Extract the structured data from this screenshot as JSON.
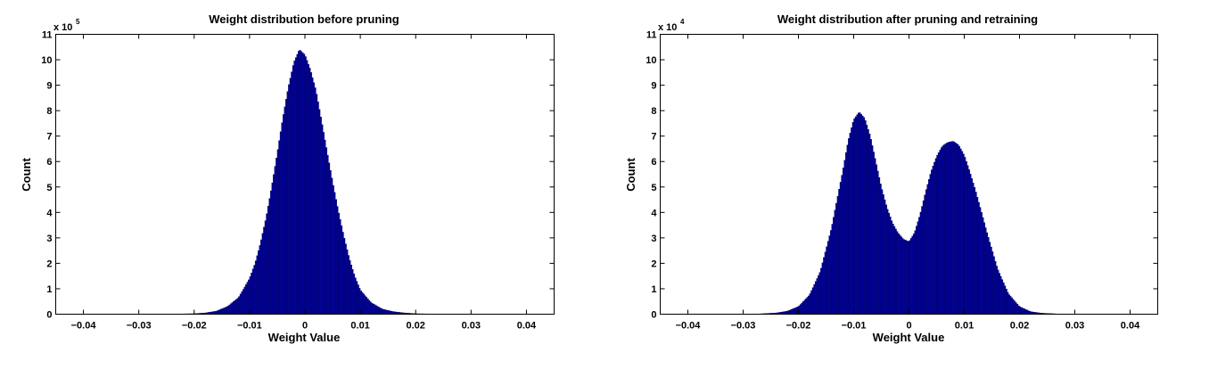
{
  "chart_data": [
    {
      "type": "bar",
      "title": "Weight distribution before pruning",
      "xlabel": "Weight Value",
      "ylabel": "Count",
      "exponent_base": "x 10",
      "exponent_power": "5",
      "xlim": [
        -0.045,
        0.045
      ],
      "ylim": [
        0,
        11
      ],
      "xticks": [
        -0.04,
        -0.03,
        -0.02,
        -0.01,
        0,
        0.01,
        0.02,
        0.03,
        0.04
      ],
      "xtick_labels": [
        "−0.04",
        "−0.03",
        "−0.02",
        "−0.01",
        "0",
        "0.01",
        "0.02",
        "0.03",
        "0.04"
      ],
      "yticks": [
        0,
        1,
        2,
        3,
        4,
        5,
        6,
        7,
        8,
        9,
        10,
        11
      ],
      "ytick_labels": [
        "0",
        "1",
        "2",
        "3",
        "4",
        "5",
        "6",
        "7",
        "8",
        "9",
        "10",
        "11"
      ],
      "grid": false,
      "bar_color": "#000096",
      "bins": {
        "start": -0.025,
        "end": 0.025,
        "width": 0.00025
      },
      "curve_points": {
        "x": [
          -0.025,
          -0.02,
          -0.018,
          -0.016,
          -0.014,
          -0.012,
          -0.01,
          -0.009,
          -0.008,
          -0.007,
          -0.006,
          -0.005,
          -0.004,
          -0.003,
          -0.002,
          -0.001,
          0.0,
          0.001,
          0.002,
          0.003,
          0.004,
          0.005,
          0.006,
          0.007,
          0.008,
          0.009,
          0.01,
          0.012,
          0.014,
          0.016,
          0.018,
          0.02,
          0.025
        ],
        "y": [
          0,
          0.02,
          0.05,
          0.12,
          0.3,
          0.65,
          1.4,
          2.0,
          2.8,
          3.8,
          5.0,
          6.3,
          7.7,
          8.9,
          9.9,
          10.4,
          10.2,
          9.6,
          8.8,
          7.6,
          6.4,
          5.2,
          4.1,
          3.1,
          2.2,
          1.5,
          0.95,
          0.45,
          0.2,
          0.1,
          0.05,
          0.02,
          0
        ]
      }
    },
    {
      "type": "bar",
      "title": "Weight distribution after pruning and retraining",
      "xlabel": "Weight Value",
      "ylabel": "Count",
      "exponent_base": "x 10",
      "exponent_power": "4",
      "xlim": [
        -0.045,
        0.045
      ],
      "ylim": [
        0,
        11
      ],
      "xticks": [
        -0.04,
        -0.03,
        -0.02,
        -0.01,
        0,
        0.01,
        0.02,
        0.03,
        0.04
      ],
      "xtick_labels": [
        "−0.04",
        "−0.03",
        "−0.02",
        "−0.01",
        "0",
        "0.01",
        "0.02",
        "0.03",
        "0.04"
      ],
      "yticks": [
        0,
        1,
        2,
        3,
        4,
        5,
        6,
        7,
        8,
        9,
        10,
        11
      ],
      "ytick_labels": [
        "0",
        "1",
        "2",
        "3",
        "4",
        "5",
        "6",
        "7",
        "8",
        "9",
        "10",
        "11"
      ],
      "grid": false,
      "bar_color": "#000096",
      "bins": {
        "start": -0.028,
        "end": 0.028,
        "width": 0.00025
      },
      "curve_points": {
        "x": [
          -0.028,
          -0.024,
          -0.022,
          -0.02,
          -0.018,
          -0.016,
          -0.014,
          -0.012,
          -0.011,
          -0.01,
          -0.009,
          -0.008,
          -0.007,
          -0.006,
          -0.005,
          -0.004,
          -0.003,
          -0.002,
          -0.001,
          0.0,
          0.001,
          0.002,
          0.003,
          0.004,
          0.005,
          0.006,
          0.007,
          0.008,
          0.009,
          0.01,
          0.011,
          0.012,
          0.014,
          0.016,
          0.018,
          0.02,
          0.022,
          0.024,
          0.028
        ],
        "y": [
          0,
          0.05,
          0.12,
          0.3,
          0.75,
          1.7,
          3.4,
          5.6,
          6.8,
          7.65,
          7.95,
          7.7,
          7.0,
          6.0,
          5.0,
          4.2,
          3.6,
          3.2,
          2.95,
          2.85,
          3.2,
          3.9,
          4.8,
          5.6,
          6.2,
          6.6,
          6.75,
          6.8,
          6.65,
          6.25,
          5.6,
          4.9,
          3.3,
          1.8,
          0.8,
          0.3,
          0.1,
          0.04,
          0
        ]
      }
    }
  ]
}
